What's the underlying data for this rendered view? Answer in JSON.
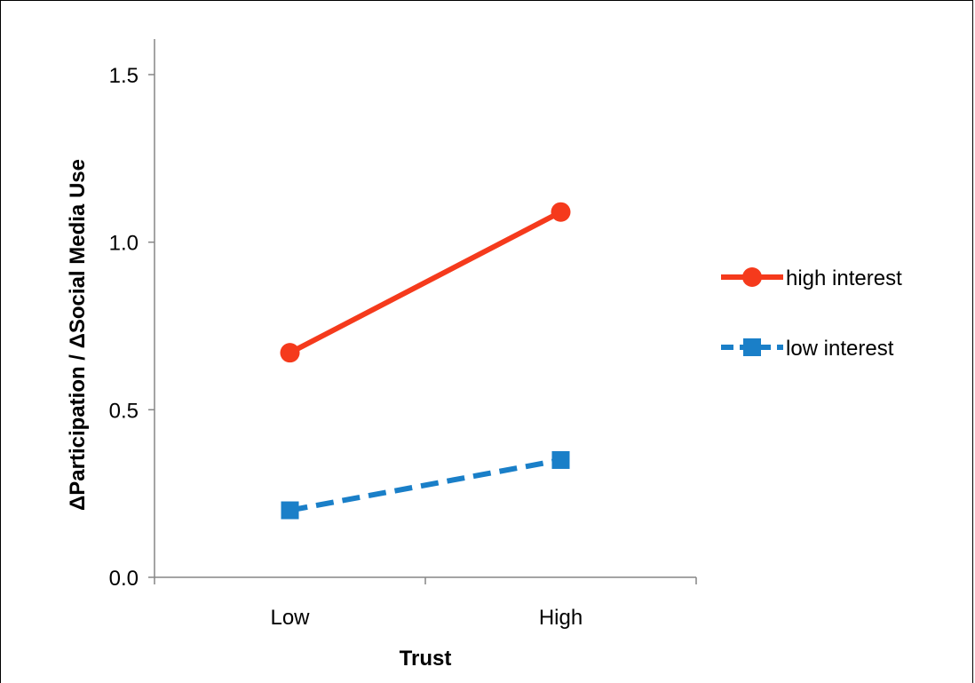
{
  "chart_data": {
    "type": "line",
    "categories": [
      "Low",
      "High"
    ],
    "xlabel": "Trust",
    "ylabel": "ΔParticipation / ΔSocial Media Use",
    "ylim": [
      0,
      1.5
    ],
    "yticks": [
      "0.0",
      "0.5",
      "1.0",
      "1.5"
    ],
    "ytick_values": [
      0,
      0.5,
      1.0,
      1.5
    ],
    "grid": false,
    "legend_position": "right",
    "series": [
      {
        "name": "high interest",
        "values": [
          0.67,
          1.09
        ],
        "color": "#f53a1c",
        "marker": "circle",
        "dash": "solid"
      },
      {
        "name": "low interest",
        "values": [
          0.2,
          0.35
        ],
        "color": "#1a7fc8",
        "marker": "square",
        "dash": "dashed"
      }
    ]
  }
}
